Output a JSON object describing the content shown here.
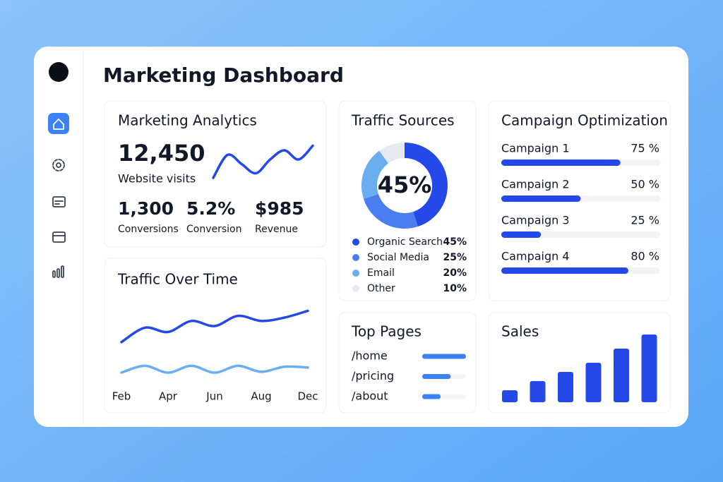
{
  "header": {
    "title": "Marketing Dashboard"
  },
  "analytics": {
    "title": "Marketing Analytics",
    "visits": "12,450",
    "visits_label": "Website visits",
    "stats": [
      {
        "value": "1,300",
        "label": "Conversions"
      },
      {
        "value": "5.2%",
        "label": "Conversion"
      },
      {
        "value": "$985",
        "label": "Revenue"
      }
    ],
    "trend": {
      "type": "line",
      "values": [
        1,
        3.5,
        2.5,
        1.5,
        3,
        4,
        3,
        4.5
      ],
      "ylim": [
        0,
        5
      ],
      "color": "#2449e8"
    }
  },
  "traffic_over_time": {
    "type": "line",
    "title": "Traffic Over Time",
    "categories": [
      "Feb",
      null,
      "Apr",
      null,
      "Jun",
      null,
      "Aug",
      null,
      "Dec"
    ],
    "ylim": [
      0,
      10
    ],
    "series": [
      {
        "color": "#2449e8",
        "values": [
          4.6,
          6.3,
          5.8,
          7.1,
          6.5,
          7.7,
          7.1,
          7.5,
          8.3
        ]
      },
      {
        "color": "#6aaef0",
        "values": [
          1.0,
          1.8,
          1.0,
          1.8,
          1.0,
          1.8,
          1.1,
          1.7,
          1.6
        ]
      }
    ]
  },
  "traffic_sources": {
    "type": "donut",
    "title": "Traffic Sources",
    "categories": [
      "Organic Search",
      "Social Media",
      "Email",
      "Other"
    ],
    "values": [
      45,
      25,
      20,
      10
    ],
    "value_labels": [
      "45%",
      "25%",
      "20%",
      "10%"
    ],
    "colors": [
      "#2449e8",
      "#4a7df0",
      "#6aaef0",
      "#e5e9f2"
    ]
  },
  "campaigns": {
    "type": "hbar",
    "title": "Campaign Optimization",
    "categories": [
      "Campaign 1",
      "Campaign 2",
      "Campaign 3",
      "Campaign 4"
    ],
    "values": [
      75,
      50,
      25,
      80
    ],
    "value_labels": [
      "75 %",
      "50 %",
      "25 %",
      "80 %"
    ],
    "xlim": [
      0,
      100
    ],
    "color": "#2449e8"
  },
  "top_pages": {
    "type": "hbar",
    "title": "Top Pages",
    "categories": [
      "/home",
      "/pricing",
      "/about"
    ],
    "values": [
      100,
      65,
      42
    ],
    "xlim": [
      0,
      100
    ],
    "color": "#3b82f6"
  },
  "sales": {
    "type": "bar",
    "title": "Sales",
    "categories": [
      null,
      null,
      null,
      null,
      null,
      null
    ],
    "values": [
      17,
      30,
      43,
      56,
      76,
      96
    ],
    "ylim": [
      0,
      100
    ],
    "color": "#2449e8"
  }
}
